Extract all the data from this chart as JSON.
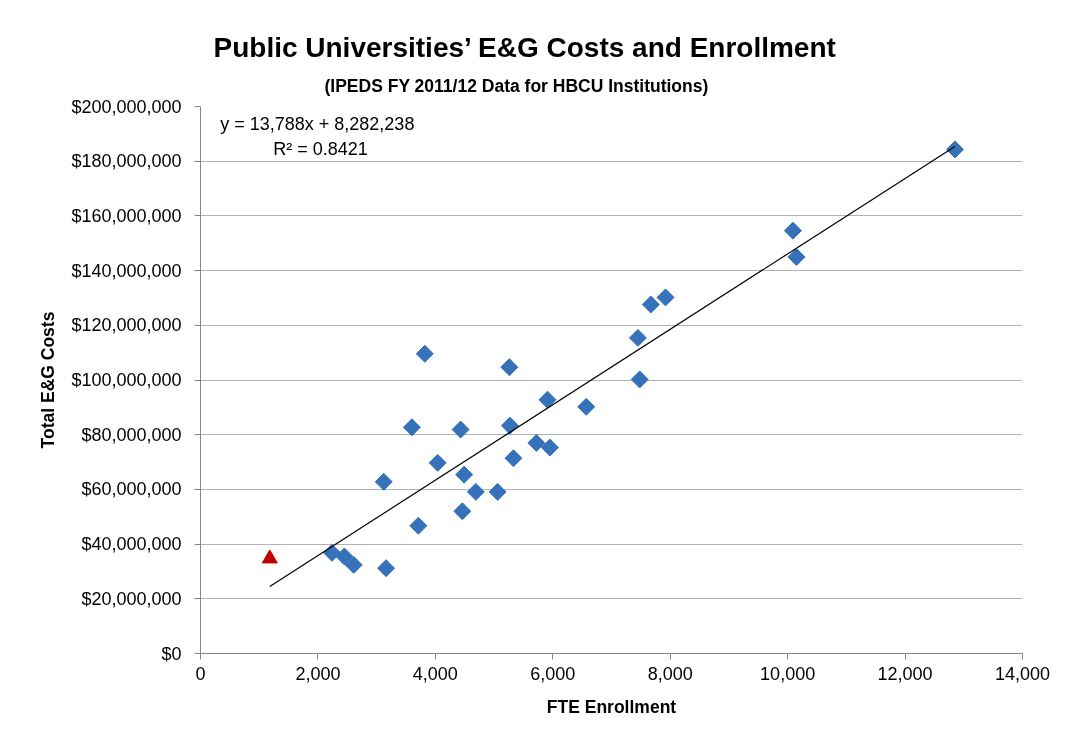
{
  "chart_data": {
    "type": "scatter",
    "title": "Public Universities’ E&G Costs and Enrollment",
    "subtitle": "(IPEDS FY 2011/12 Data for HBCU Institutions)",
    "xlabel": "FTE Enrollment",
    "ylabel": "Total E&G Costs",
    "annotations": [
      "y = 13,788x + 8,282,238",
      "R² = 0.8421"
    ],
    "xlim": [
      0,
      14000
    ],
    "xticks": [
      0,
      {
        "value": 2000,
        "label": "2,000"
      },
      {
        "value": 4000,
        "label": "4,000"
      },
      {
        "value": 6000,
        "label": "6,000"
      },
      {
        "value": 8000,
        "label": "8,000"
      },
      {
        "value": 10000,
        "label": "10,000"
      },
      {
        "value": 12000,
        "label": "12,000"
      },
      {
        "value": 14000,
        "label": "14,000"
      }
    ],
    "ylim": [
      0,
      200000000
    ],
    "yticks": [
      {
        "value": 0,
        "label": "$0"
      },
      {
        "value": 20000000,
        "label": "$20,000,000"
      },
      {
        "value": 40000000,
        "label": "$40,000,000"
      },
      {
        "value": 60000000,
        "label": "$60,000,000"
      },
      {
        "value": 80000000,
        "label": "$80,000,000"
      },
      {
        "value": 100000000,
        "label": "$100,000,000"
      },
      {
        "value": 120000000,
        "label": "$120,000,000"
      },
      {
        "value": 140000000,
        "label": "$140,000,000"
      },
      {
        "value": 160000000,
        "label": "$160,000,000"
      },
      {
        "value": 180000000,
        "label": "$180,000,000"
      },
      {
        "value": 200000000,
        "label": "$200,000,000"
      }
    ],
    "grid": "y",
    "series": [
      {
        "color": "#3572b9",
        "marker": "diamond",
        "x": [
          2240,
          2450,
          2610,
          3120,
          3160,
          3600,
          3710,
          3820,
          4040,
          4430,
          4460,
          4490,
          4690,
          5060,
          5260,
          5270,
          5330,
          5720,
          5910,
          5950,
          6570,
          7450,
          7480,
          7670,
          7920,
          10090,
          10150,
          12850
        ],
        "values": [
          36800000,
          35500000,
          32400000,
          62800000,
          31200000,
          82700000,
          46700000,
          109600000,
          69700000,
          81900000,
          52000000,
          65400000,
          59100000,
          59100000,
          104700000,
          83300000,
          71400000,
          77000000,
          92800000,
          75300000,
          90200000,
          115400000,
          100200000,
          127600000,
          130200000,
          154600000,
          145000000,
          184300000
        ]
      },
      {
        "color": "#c00000",
        "marker": "triangle",
        "x": [
          1180
        ],
        "values": [
          34700000
        ]
      },
      {
        "type": "line",
        "color": "#000000",
        "x": [
          1180,
          12850
        ],
        "values": [
          24500000,
          185400000
        ]
      }
    ]
  }
}
